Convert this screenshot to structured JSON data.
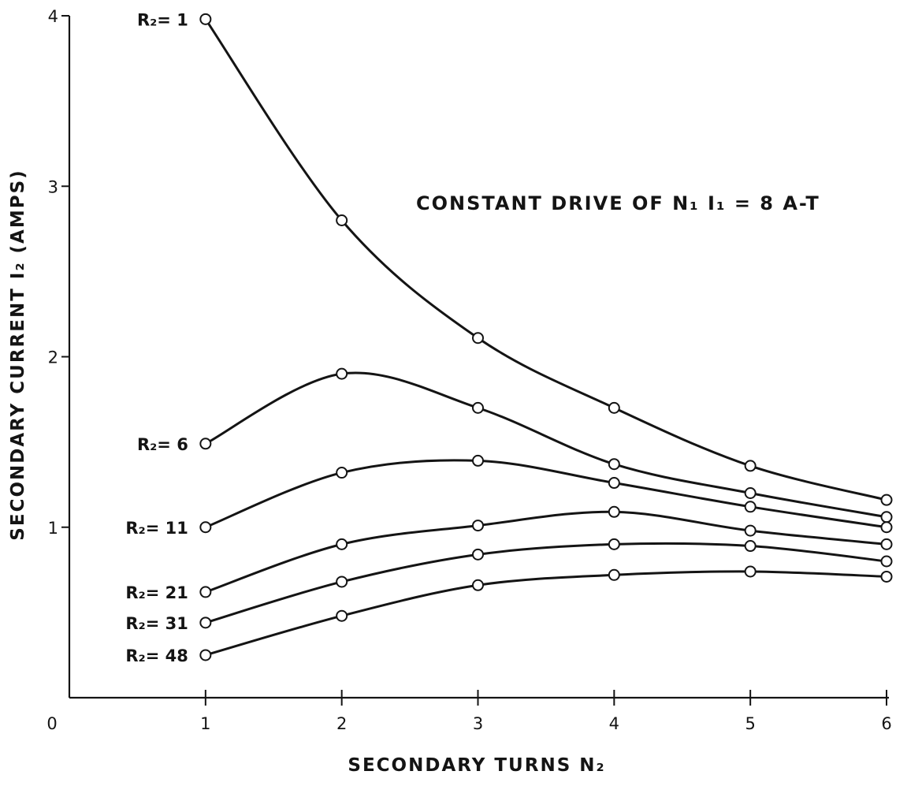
{
  "chart_data": {
    "type": "line",
    "title": "",
    "annotation": "CONSTANT DRIVE OF N₁ I₁ = 8 A-T",
    "xlabel": "SECONDARY TURNS N₂",
    "ylabel": "SECONDARY CURRENT I₂ (AMPS)",
    "xlim": [
      0,
      6
    ],
    "ylim": [
      0,
      4
    ],
    "x_ticks": [
      "0",
      "1",
      "2",
      "3",
      "4",
      "5",
      "6"
    ],
    "y_ticks": [
      "1",
      "2",
      "3",
      "4"
    ],
    "grid": false,
    "x": [
      1,
      2,
      3,
      4,
      5,
      6
    ],
    "series": [
      {
        "name": "R₂= 1",
        "values": [
          3.98,
          2.8,
          2.11,
          1.7,
          1.36,
          1.16
        ]
      },
      {
        "name": "R₂= 6",
        "values": [
          1.49,
          1.9,
          1.7,
          1.37,
          1.2,
          1.06
        ]
      },
      {
        "name": "R₂= 11",
        "values": [
          1.0,
          1.32,
          1.39,
          1.26,
          1.12,
          1.0
        ]
      },
      {
        "name": "R₂= 21",
        "values": [
          0.62,
          0.9,
          1.01,
          1.09,
          0.98,
          0.9
        ]
      },
      {
        "name": "R₂= 31",
        "values": [
          0.44,
          0.68,
          0.84,
          0.9,
          0.89,
          0.8
        ]
      },
      {
        "name": "R₂= 48",
        "values": [
          0.25,
          0.48,
          0.66,
          0.72,
          0.74,
          0.71
        ]
      }
    ]
  }
}
